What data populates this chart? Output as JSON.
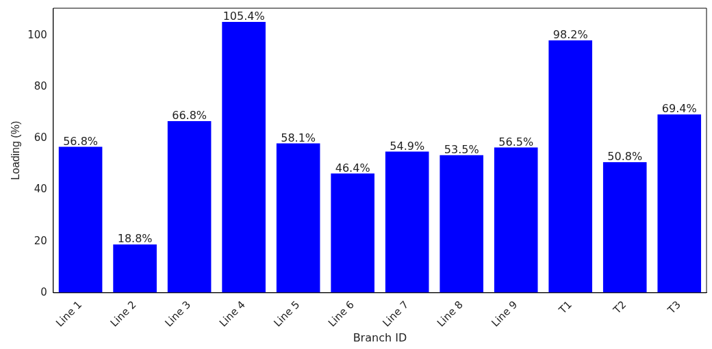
{
  "chart_data": {
    "type": "bar",
    "xlabel": "Branch ID",
    "ylabel": "Loading (%)",
    "categories": [
      "Line 1",
      "Line 2",
      "Line 3",
      "Line 4",
      "Line 5",
      "Line 6",
      "Line 7",
      "Line 8",
      "Line 9",
      "T1",
      "T2",
      "T3"
    ],
    "values": [
      56.8,
      18.8,
      66.8,
      105.4,
      58.1,
      46.4,
      54.9,
      53.5,
      56.5,
      98.2,
      50.8,
      69.4
    ],
    "value_labels": [
      "56.8%",
      "18.8%",
      "66.8%",
      "105.4%",
      "58.1%",
      "46.4%",
      "54.9%",
      "53.5%",
      "56.5%",
      "98.2%",
      "50.8%",
      "69.4%"
    ],
    "color": "#0000ff",
    "ylim": [
      0,
      110.7
    ],
    "yticks": [
      0,
      20,
      40,
      60,
      80,
      100
    ],
    "grid": false,
    "legend": false
  }
}
